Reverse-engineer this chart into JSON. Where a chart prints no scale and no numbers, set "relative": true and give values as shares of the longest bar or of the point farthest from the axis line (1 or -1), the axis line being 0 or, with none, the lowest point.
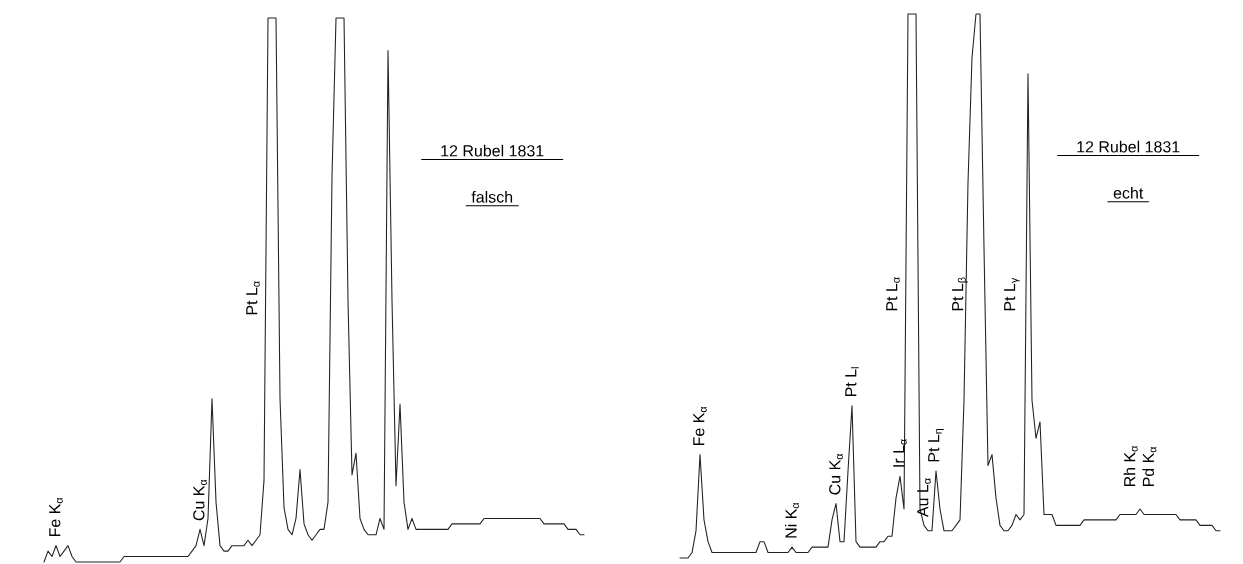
{
  "chart_data": [
    {
      "type": "line",
      "relative": true,
      "color": "#222222",
      "line_style": "solid",
      "title": "12 Rubel 1831",
      "subtitle": "falsch",
      "categories": [
        null,
        null,
        null,
        null,
        null,
        null,
        null,
        null,
        null,
        null,
        null,
        null,
        null,
        null,
        null,
        null,
        null,
        null,
        null,
        null,
        null,
        null,
        null,
        null,
        null,
        null,
        null,
        null,
        null,
        null,
        null,
        null,
        null,
        null,
        null,
        null,
        null,
        null,
        null,
        null,
        null,
        null,
        null,
        null,
        null,
        null,
        null,
        null,
        null,
        null,
        null,
        null,
        null,
        null,
        null,
        null,
        null,
        null,
        null,
        null,
        null,
        null,
        null,
        null,
        null,
        null,
        null,
        null,
        null,
        null,
        null,
        null,
        null,
        null,
        null,
        null,
        null,
        null,
        null,
        null,
        null,
        null,
        null,
        null,
        null,
        null,
        null,
        null,
        null,
        null,
        null,
        null,
        null,
        null,
        null,
        null,
        null,
        null,
        null,
        null,
        null,
        null,
        null,
        null,
        null,
        null,
        null,
        null,
        null,
        null,
        null,
        null,
        null,
        null,
        null,
        null,
        null,
        null,
        null,
        null,
        null,
        null,
        null,
        null,
        null,
        null,
        null,
        null,
        null,
        null,
        null,
        null,
        null,
        null,
        null,
        null
      ],
      "values": [
        0,
        0.02,
        0.01,
        0.03,
        0.01,
        0.02,
        0.03,
        0.01,
        0,
        0,
        0,
        0,
        0,
        0,
        0,
        0,
        0,
        0,
        0,
        0,
        0.01,
        0.01,
        0.01,
        0.01,
        0.01,
        0.01,
        0.01,
        0.01,
        0.01,
        0.01,
        0.01,
        0.01,
        0.01,
        0.01,
        0.01,
        0.01,
        0.01,
        0.02,
        0.03,
        0.06,
        0.03,
        0.08,
        0.3,
        0.11,
        0.03,
        0.02,
        0.02,
        0.03,
        0.03,
        0.03,
        0.03,
        0.04,
        0.03,
        0.04,
        0.05,
        0.15,
        1,
        1,
        1,
        0.3,
        0.1,
        0.06,
        0.05,
        0.08,
        0.17,
        0.07,
        0.05,
        0.04,
        0.05,
        0.06,
        0.06,
        0.11,
        0.71,
        1,
        1,
        1,
        0.48,
        0.16,
        0.2,
        0.08,
        0.06,
        0.05,
        0.05,
        0.05,
        0.08,
        0.06,
        0.94,
        0.48,
        0.14,
        0.29,
        0.11,
        0.06,
        0.08,
        0.06,
        0.06,
        0.06,
        0.06,
        0.06,
        0.06,
        0.06,
        0.06,
        0.06,
        0.07,
        0.07,
        0.07,
        0.07,
        0.07,
        0.07,
        0.07,
        0.07,
        0.08,
        0.08,
        0.08,
        0.08,
        0.08,
        0.08,
        0.08,
        0.08,
        0.08,
        0.08,
        0.08,
        0.08,
        0.08,
        0.08,
        0.08,
        0.07,
        0.07,
        0.07,
        0.07,
        0.07,
        0.07,
        0.06,
        0.06,
        0.06,
        0.05,
        0.05
      ],
      "annotations": [
        {
          "text": "Fe K$_{α}$",
          "y": 0.03
        },
        {
          "text": "Cu K$_{α}$",
          "y": 0.06
        },
        "Pt L$_{α}$"
      ]
    },
    {
      "type": "line",
      "relative": true,
      "color": "#222222",
      "line_style": "solid",
      "title": "12 Rubel 1831",
      "subtitle": "echt",
      "categories": [
        null,
        null,
        null,
        null,
        null,
        null,
        null,
        null,
        null,
        null,
        null,
        null,
        null,
        null,
        null,
        null,
        null,
        null,
        null,
        null,
        null,
        null,
        null,
        null,
        null,
        null,
        null,
        null,
        null,
        null,
        null,
        null,
        null,
        null,
        null,
        null,
        null,
        null,
        null,
        null,
        null,
        null,
        null,
        null,
        null,
        null,
        null,
        null,
        null,
        null,
        null,
        null,
        null,
        null,
        null,
        null,
        null,
        null,
        null,
        null,
        null,
        null,
        null,
        null,
        null,
        null,
        null,
        null,
        null,
        null,
        null,
        null,
        null,
        null,
        null,
        null,
        null,
        null,
        null,
        null,
        null,
        null,
        null,
        null,
        null,
        null,
        null,
        null,
        null,
        null,
        null,
        null,
        null,
        null,
        null,
        null,
        null,
        null,
        null,
        null,
        null,
        null,
        null,
        null,
        null,
        null,
        null,
        null,
        null,
        null,
        null,
        null,
        null,
        null,
        null,
        null,
        null,
        null,
        null,
        null,
        null,
        null,
        null,
        null,
        null,
        null,
        null,
        null,
        null,
        null,
        null,
        null,
        null,
        null,
        null,
        null
      ],
      "values": [
        0,
        0,
        0,
        0.01,
        0.05,
        0.19,
        0.07,
        0.03,
        0.01,
        0.01,
        0.01,
        0.01,
        0.01,
        0.01,
        0.01,
        0.01,
        0.01,
        0.01,
        0.01,
        0.01,
        0.03,
        0.03,
        0.01,
        0.01,
        0.01,
        0.01,
        0.01,
        0.01,
        0.02,
        0.01,
        0.01,
        0.01,
        0.01,
        0.02,
        0.02,
        0.02,
        0.02,
        0.02,
        0.07,
        0.1,
        0.03,
        0.03,
        0.16,
        0.28,
        0.03,
        0.02,
        0.02,
        0.02,
        0.02,
        0.02,
        0.03,
        0.03,
        0.04,
        0.04,
        0.11,
        0.15,
        0.09,
        1,
        1,
        1,
        0.09,
        0.06,
        0.05,
        0.05,
        0.16,
        0.09,
        0.05,
        0.05,
        0.05,
        0.06,
        0.07,
        0.29,
        0.69,
        0.92,
        1,
        1,
        0.57,
        0.17,
        0.19,
        0.11,
        0.06,
        0.05,
        0.05,
        0.06,
        0.08,
        0.07,
        0.08,
        0.89,
        0.29,
        0.22,
        0.25,
        0.08,
        0.08,
        0.08,
        0.06,
        0.06,
        0.06,
        0.06,
        0.06,
        0.06,
        0.06,
        0.07,
        0.07,
        0.07,
        0.07,
        0.07,
        0.07,
        0.07,
        0.07,
        0.07,
        0.08,
        0.08,
        0.08,
        0.08,
        0.08,
        0.09,
        0.08,
        0.08,
        0.08,
        0.08,
        0.08,
        0.08,
        0.08,
        0.08,
        0.08,
        0.07,
        0.07,
        0.07,
        0.07,
        0.07,
        0.06,
        0.06,
        0.06,
        0.06,
        0.05,
        0.05
      ],
      "annotations": [
        {
          "text": "Fe K$_{α}$",
          "y": 0.19
        },
        {
          "text": "Ni K$_{α}$",
          "y": 0.02
        },
        {
          "text": "Cu K$_{α}$",
          "y": 0.1
        },
        {
          "text": "Pt L$_{l}$",
          "y": 0.28
        },
        {
          "text": "Ir L$_{α}$",
          "y": 0.15
        },
        "Pt L$_{α}$",
        {
          "text": "Au L$_{α}$",
          "y": 0.06
        },
        {
          "text": "Pt L$_{η}$",
          "y": 0.16
        },
        "Pt L$_{β}$",
        "Pt L$_{γ}$",
        {
          "text": "Rh K$_{α}$",
          "y": 0.09
        },
        {
          "text": "Pd K$_{α}$",
          "y": 0.09
        }
      ]
    }
  ]
}
